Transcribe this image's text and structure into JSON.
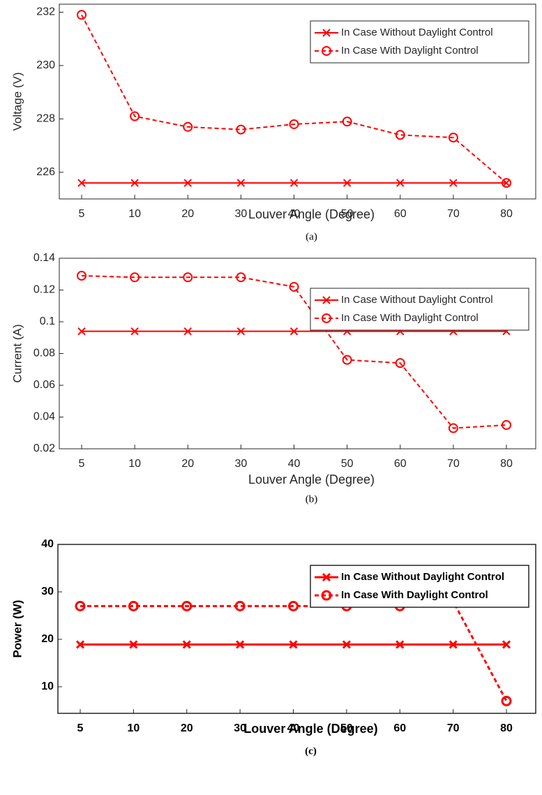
{
  "chart_data": [
    {
      "type": "line",
      "caption": "(a)",
      "x_label": "Louver Angle (Degree)",
      "y_label": "Voltage (V)",
      "categories": [
        "5",
        "10",
        "20",
        "30",
        "40",
        "50",
        "60",
        "70",
        "80"
      ],
      "ylim": [
        225,
        232.3
      ],
      "yticks": [
        226,
        228,
        230,
        232
      ],
      "legend": "upper right",
      "font_weight": "normal",
      "series": [
        {
          "name": "In Case Without Daylight Control",
          "color": "#ff0000",
          "marker": "x",
          "line_style": "solid",
          "values": [
            225.6,
            225.6,
            225.6,
            225.6,
            225.6,
            225.6,
            225.6,
            225.6,
            225.6
          ]
        },
        {
          "name": "In Case With Daylight Control",
          "color": "#ff0000",
          "marker": "o",
          "line_style": "dashed",
          "values": [
            231.9,
            228.1,
            227.7,
            227.6,
            227.8,
            227.9,
            227.4,
            227.3,
            225.6
          ]
        }
      ]
    },
    {
      "type": "line",
      "caption": "(b)",
      "x_label": "Louver Angle (Degree)",
      "y_label": "Current (A)",
      "categories": [
        "5",
        "10",
        "20",
        "30",
        "40",
        "50",
        "60",
        "70",
        "80"
      ],
      "ylim": [
        0.02,
        0.14
      ],
      "yticks": [
        0.02,
        0.04,
        0.06,
        0.08,
        0.1,
        0.12,
        0.14
      ],
      "legend": "upper right",
      "font_weight": "normal",
      "series": [
        {
          "name": "In Case Without Daylight Control",
          "color": "#ff0000",
          "marker": "x",
          "line_style": "solid",
          "values": [
            0.094,
            0.094,
            0.094,
            0.094,
            0.094,
            0.094,
            0.094,
            0.094,
            0.094
          ]
        },
        {
          "name": "In Case With Daylight Control",
          "color": "#ff0000",
          "marker": "o",
          "line_style": "dashed",
          "values": [
            0.129,
            0.128,
            0.128,
            0.128,
            0.122,
            0.076,
            0.074,
            0.033,
            0.035
          ]
        }
      ]
    },
    {
      "type": "line",
      "caption": "(c)",
      "x_label": "Louver Angle (Degree)",
      "y_label": "Power (W)",
      "categories": [
        "5",
        "10",
        "20",
        "30",
        "40",
        "50",
        "60",
        "70",
        "80"
      ],
      "ylim": [
        4.4,
        40
      ],
      "yticks": [
        10,
        20,
        30,
        40
      ],
      "legend": "upper right",
      "font_weight": "bold",
      "series": [
        {
          "name": "In Case Without Daylight Control",
          "color": "#ff0000",
          "marker": "x",
          "line_style": "solid",
          "values": [
            18.9,
            18.9,
            18.9,
            18.9,
            18.9,
            18.9,
            18.9,
            18.9,
            18.9
          ]
        },
        {
          "name": "In Case With Daylight Control",
          "color": "#ff0000",
          "marker": "o",
          "line_style": "dashed",
          "values": [
            27,
            27,
            27,
            27,
            27,
            27,
            27,
            28,
            7
          ]
        }
      ]
    }
  ]
}
